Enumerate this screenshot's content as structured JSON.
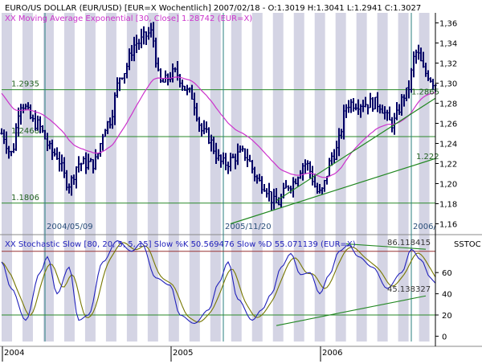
{
  "window": {
    "title": "EURO/US DOLLAR (EUR/USD) [EUR=X  Wochentlich] 2007/02/18 - O:1.3019 H:1.3041 L:1.2941 C:1.3027",
    "legend_ma": "XX Moving Average Exponential [30, Close] 1.28742 (EUR=X)",
    "panel_label": "SSTOC"
  },
  "colors": {
    "price": "#000066",
    "ma": "#cc33cc",
    "stoch_k": "#2222bb",
    "stoch_d": "#777700",
    "trendline": "#228822",
    "level_line": "#993333",
    "hline": "#2a8a2a",
    "band": "#d4d4e4",
    "vline": "#2a7f7f",
    "text_green": "#1f5f1f",
    "text_blue": "#2a4f7a"
  },
  "chart_data": [
    {
      "type": "candlestick",
      "title": "EURO/US DOLLAR (EUR/USD) [EUR=X  Wochentlich] 2007/02/18 - O:1.3019 H:1.3041 L:1.2941 C:1.3027",
      "ohlc_last": {
        "date": "2007/02/18",
        "open": 1.3019,
        "high": 1.3041,
        "low": 1.2941,
        "close": 1.3027
      },
      "ylim": [
        1.15,
        1.37
      ],
      "y_ticks": [
        "1,16",
        "1,18",
        "1,20",
        "1,22",
        "1,24",
        "1,26",
        "1,28",
        "1,30",
        "1,32",
        "1,34",
        "1,36"
      ],
      "x_tick_labels": [
        "2004",
        "2005",
        "2006"
      ],
      "x_annotations": [
        "2004/05/09",
        "2005/11/20",
        "2006/"
      ],
      "price_anchors": [
        {
          "t": 0,
          "v": 1.25
        },
        {
          "t": 4,
          "v": 1.23
        },
        {
          "t": 8,
          "v": 1.28
        },
        {
          "t": 14,
          "v": 1.26
        },
        {
          "t": 22,
          "v": 1.23
        },
        {
          "t": 28,
          "v": 1.2
        },
        {
          "t": 32,
          "v": 1.22
        },
        {
          "t": 38,
          "v": 1.22
        },
        {
          "t": 44,
          "v": 1.26
        },
        {
          "t": 50,
          "v": 1.31
        },
        {
          "t": 56,
          "v": 1.34
        },
        {
          "t": 62,
          "v": 1.35
        },
        {
          "t": 66,
          "v": 1.3
        },
        {
          "t": 72,
          "v": 1.31
        },
        {
          "t": 78,
          "v": 1.29
        },
        {
          "t": 84,
          "v": 1.25
        },
        {
          "t": 92,
          "v": 1.22
        },
        {
          "t": 100,
          "v": 1.23
        },
        {
          "t": 108,
          "v": 1.2
        },
        {
          "t": 114,
          "v": 1.18
        },
        {
          "t": 120,
          "v": 1.2
        },
        {
          "t": 126,
          "v": 1.22
        },
        {
          "t": 132,
          "v": 1.19
        },
        {
          "t": 138,
          "v": 1.23
        },
        {
          "t": 144,
          "v": 1.28
        },
        {
          "t": 150,
          "v": 1.28
        },
        {
          "t": 156,
          "v": 1.28
        },
        {
          "t": 162,
          "v": 1.26
        },
        {
          "t": 168,
          "v": 1.29
        },
        {
          "t": 172,
          "v": 1.33
        },
        {
          "t": 176,
          "v": 1.31
        },
        {
          "t": 180,
          "v": 1.3
        }
      ],
      "ema": {
        "period": 30,
        "value": 1.28742
      },
      "horizontal_levels": [
        {
          "value": 1.2935,
          "label": "1.2935"
        },
        {
          "value": 1.2468,
          "label": "1.2468"
        },
        {
          "value": 1.1806,
          "label": "1.1806"
        }
      ],
      "trendlines": [
        {
          "from": {
            "t": 114,
            "v": 1.183
          },
          "to": {
            "t": 180,
            "v": 1.285
          }
        },
        {
          "from": {
            "t": 95,
            "v": 1.16
          },
          "to": {
            "t": 180,
            "v": 1.225
          }
        }
      ],
      "trend_labels": [
        {
          "label": "1.2865",
          "t": 170,
          "v": 1.2865
        },
        {
          "label": "1.222",
          "t": 172,
          "v": 1.222
        }
      ]
    },
    {
      "type": "line",
      "title": "XX Stochastic Slow [80, 20, 5, 5, 15] Slow %K 50.569476 Slow %D 55.071139 (EUR=X)",
      "series_names": [
        "Slow %K",
        "Slow %D"
      ],
      "last_values": {
        "k": 50.569476,
        "d": 55.071139
      },
      "ylim": [
        -5,
        95
      ],
      "y_ticks": [
        "0",
        "20",
        "40",
        "60"
      ],
      "levels": [
        20,
        80
      ],
      "k_anchors": [
        {
          "t": 0,
          "v": 70
        },
        {
          "t": 4,
          "v": 45
        },
        {
          "t": 10,
          "v": 15
        },
        {
          "t": 16,
          "v": 60
        },
        {
          "t": 19,
          "v": 75
        },
        {
          "t": 23,
          "v": 40
        },
        {
          "t": 28,
          "v": 65
        },
        {
          "t": 32,
          "v": 15
        },
        {
          "t": 36,
          "v": 20
        },
        {
          "t": 42,
          "v": 70
        },
        {
          "t": 48,
          "v": 90
        },
        {
          "t": 54,
          "v": 80
        },
        {
          "t": 58,
          "v": 88
        },
        {
          "t": 64,
          "v": 55
        },
        {
          "t": 70,
          "v": 48
        },
        {
          "t": 74,
          "v": 20
        },
        {
          "t": 80,
          "v": 12
        },
        {
          "t": 86,
          "v": 25
        },
        {
          "t": 90,
          "v": 50
        },
        {
          "t": 94,
          "v": 70
        },
        {
          "t": 98,
          "v": 35
        },
        {
          "t": 104,
          "v": 15
        },
        {
          "t": 108,
          "v": 25
        },
        {
          "t": 112,
          "v": 40
        },
        {
          "t": 116,
          "v": 65
        },
        {
          "t": 120,
          "v": 78
        },
        {
          "t": 124,
          "v": 58
        },
        {
          "t": 128,
          "v": 60
        },
        {
          "t": 132,
          "v": 40
        },
        {
          "t": 136,
          "v": 58
        },
        {
          "t": 140,
          "v": 80
        },
        {
          "t": 144,
          "v": 86
        },
        {
          "t": 148,
          "v": 75
        },
        {
          "t": 154,
          "v": 65
        },
        {
          "t": 160,
          "v": 45
        },
        {
          "t": 166,
          "v": 60
        },
        {
          "t": 170,
          "v": 82
        },
        {
          "t": 174,
          "v": 72
        },
        {
          "t": 178,
          "v": 55
        },
        {
          "t": 180,
          "v": 50
        }
      ],
      "divergence_lines": [
        {
          "from": {
            "t": 143,
            "v": 87
          },
          "to": {
            "t": 176,
            "v": 82
          }
        },
        {
          "from": {
            "t": 114,
            "v": 10
          },
          "to": {
            "t": 176,
            "v": 38
          }
        }
      ],
      "divergence_labels": [
        {
          "label": "86.118415",
          "t": 160,
          "v": 86
        },
        {
          "label": "45.138327",
          "t": 160,
          "v": 42
        }
      ]
    }
  ]
}
